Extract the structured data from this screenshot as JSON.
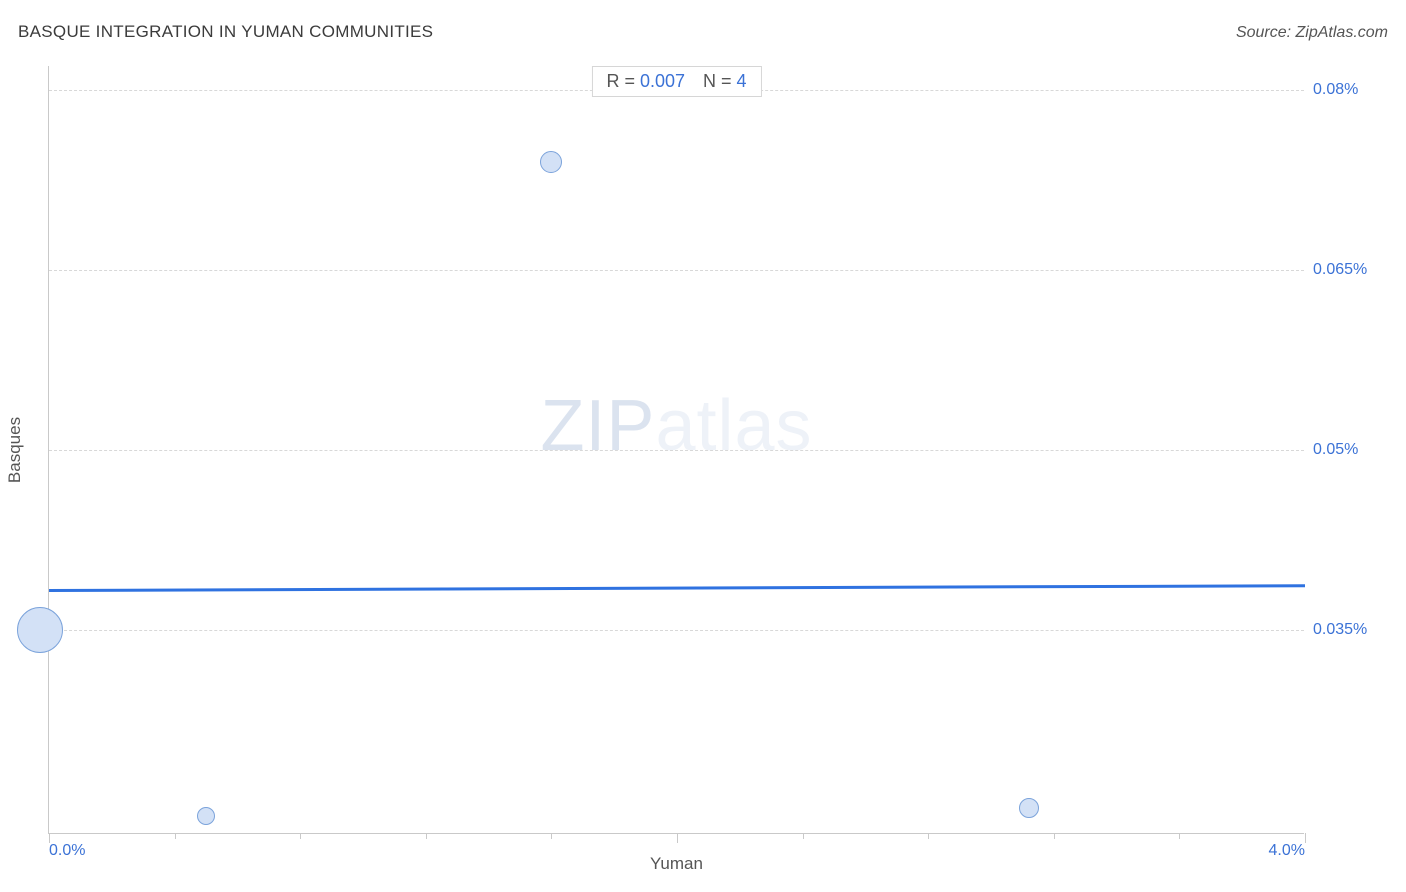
{
  "title": "BASQUE INTEGRATION IN YUMAN COMMUNITIES",
  "source": "Source: ZipAtlas.com",
  "watermark_a": "ZIP",
  "watermark_b": "atlas",
  "chart": {
    "type": "scatter",
    "xlabel": "Yuman",
    "ylabel": "Basques",
    "xlim": [
      0.0,
      4.0
    ],
    "ylim": [
      0.018,
      0.082
    ],
    "ytick_labels": [
      "0.035%",
      "0.05%",
      "0.065%",
      "0.08%"
    ],
    "ytick_values": [
      0.035,
      0.05,
      0.065,
      0.08
    ],
    "xtick_labels": [
      "0.0%",
      "4.0%"
    ],
    "xtick_values": [
      0.0,
      4.0
    ],
    "xtick_majors": [
      0.0,
      2.0,
      4.0
    ],
    "xtick_minors_step": 0.4,
    "grid_color": "#d8d8d8",
    "background_color": "#ffffff",
    "bubble_fill": "#d3e1f6",
    "bubble_stroke": "#7ba3db",
    "trend_color": "#2f72e0",
    "trend_width": 2.5,
    "stats": {
      "R_label": "R = ",
      "R_value": "0.007",
      "N_label": "N = ",
      "N_value": "4"
    },
    "bubbles": [
      {
        "x": -0.03,
        "y": 0.035,
        "r": 23
      },
      {
        "x": 0.5,
        "y": 0.0195,
        "r": 9
      },
      {
        "x": 1.6,
        "y": 0.074,
        "r": 11
      },
      {
        "x": 3.12,
        "y": 0.0202,
        "r": 10
      }
    ],
    "trend": {
      "y_at_xmin": 0.0384,
      "y_at_xmax": 0.0388
    }
  }
}
